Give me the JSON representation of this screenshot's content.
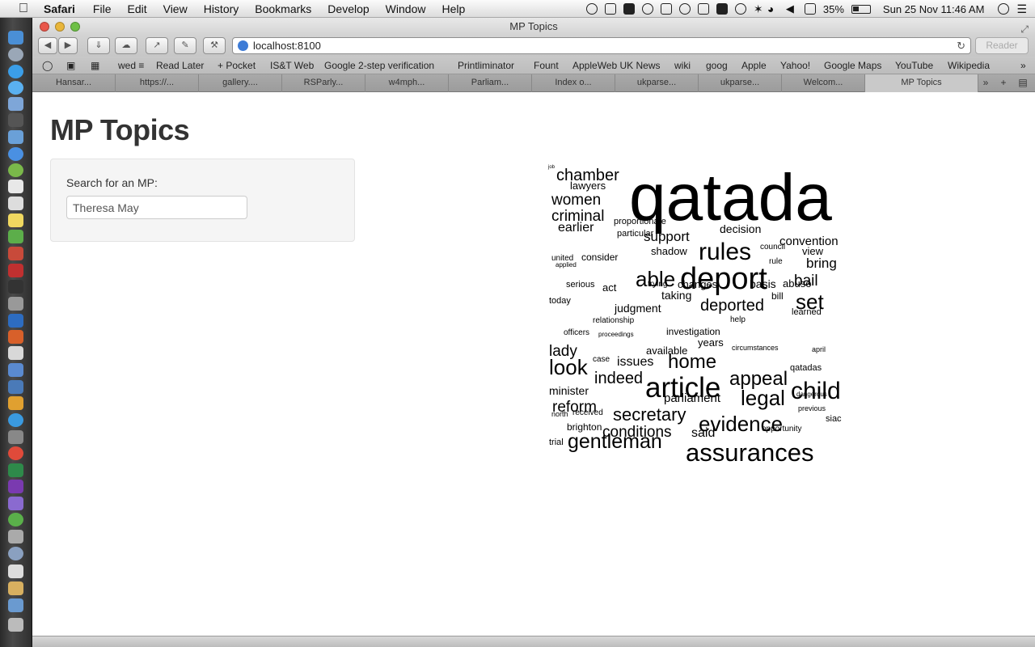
{
  "menubar": {
    "app_name": "Safari",
    "items": [
      "File",
      "Edit",
      "View",
      "History",
      "Bookmarks",
      "Develop",
      "Window",
      "Help"
    ],
    "battery": "35%",
    "clock": "Sun 25 Nov  11:46 AM"
  },
  "window": {
    "title": "MP Topics"
  },
  "toolbar": {
    "url": "localhost:8100",
    "reader_label": "Reader"
  },
  "bookmarks": [
    "wed ≡",
    "Read Later",
    "+ Pocket",
    "IS&T Web",
    "Google 2-step verification",
    "Printliminator",
    "Fount",
    "AppleWeb UK News",
    "wiki",
    "goog",
    "Apple",
    "Yahoo!",
    "Google Maps",
    "YouTube",
    "Wikipedia"
  ],
  "tabs": [
    "Hansar...",
    "https://...",
    "gallery....",
    "RSParly...",
    "w4mph...",
    "Parliam...",
    "Index o...",
    "ukparse...",
    "ukparse...",
    "Welcom...",
    "MP Topics"
  ],
  "page": {
    "title": "MP Topics",
    "search_label": "Search for an MP:",
    "search_value": "Theresa May"
  },
  "wordcloud": {
    "words": [
      "qatada",
      "deport",
      "article",
      "assurances",
      "rules",
      "evidence",
      "child",
      "gentleman",
      "appeal",
      "able",
      "legal",
      "secretary",
      "home",
      "deported",
      "set",
      "chamber",
      "conditions",
      "criminal",
      "women",
      "look",
      "indeed",
      "reform",
      "bail",
      "support",
      "said",
      "earlier",
      "convention",
      "bring",
      "decision",
      "issues",
      "lady",
      "parliament",
      "basis",
      "taking",
      "judgment",
      "years",
      "available",
      "minister",
      "lawyers",
      "qatadas",
      "shadow",
      "changes",
      "learned",
      "investigation",
      "brighton",
      "opportunity",
      "siac",
      "act",
      "abuse",
      "view",
      "consider",
      "proportionate",
      "particular",
      "today",
      "received",
      "trial",
      "council",
      "rule",
      "bill",
      "applied",
      "united",
      "relationship",
      "officers",
      "circumstances",
      "serious",
      "proceedings",
      "april",
      "previous",
      "north",
      "case",
      "trying",
      "help",
      "dangerous",
      "job"
    ]
  }
}
